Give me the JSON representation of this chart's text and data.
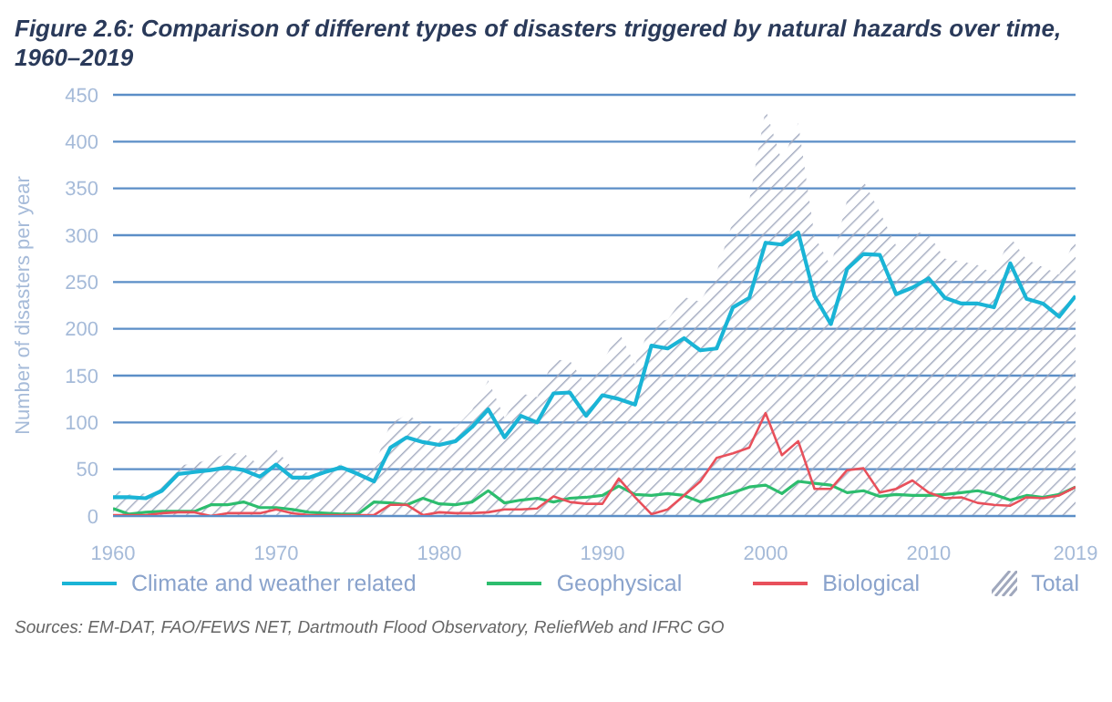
{
  "chart_data": {
    "type": "line",
    "title": "Figure 2.6: Comparison of different types of disasters triggered by natural hazards over time, 1960–2019",
    "ylabel": "Number of disasters per year",
    "x": [
      1960,
      1961,
      1962,
      1963,
      1964,
      1965,
      1966,
      1967,
      1968,
      1969,
      1970,
      1971,
      1972,
      1973,
      1974,
      1975,
      1976,
      1977,
      1978,
      1979,
      1980,
      1981,
      1982,
      1983,
      1984,
      1985,
      1986,
      1987,
      1988,
      1989,
      1990,
      1991,
      1992,
      1993,
      1994,
      1995,
      1996,
      1997,
      1998,
      1999,
      2000,
      2001,
      2002,
      2003,
      2004,
      2005,
      2006,
      2007,
      2008,
      2009,
      2010,
      2011,
      2012,
      2013,
      2014,
      2015,
      2016,
      2017,
      2018,
      2019
    ],
    "series": [
      {
        "name": "Total",
        "type": "area",
        "color": "#a0a8bd",
        "values": [
          29,
          23,
          24,
          35,
          54,
          56,
          61,
          67,
          67,
          54,
          71,
          51,
          46,
          51,
          55,
          48,
          53,
          99,
          108,
          99,
          93,
          95,
          113,
          145,
          105,
          131,
          127,
          167,
          166,
          140,
          164,
          197,
          162,
          206,
          210,
          234,
          229,
          261,
          315,
          337,
          435,
          379,
          420,
          299,
          267,
          338,
          358,
          325,
          289,
          304,
          301,
          275,
          272,
          268,
          258,
          298,
          274,
          266,
          258,
          297
        ]
      },
      {
        "name": "Climate and weather related",
        "color": "#1ab4d6",
        "values": [
          20,
          20,
          19,
          27,
          45,
          47,
          49,
          52,
          49,
          42,
          55,
          41,
          41,
          47,
          52,
          45,
          37,
          73,
          84,
          79,
          76,
          80,
          95,
          114,
          84,
          107,
          100,
          131,
          132,
          107,
          129,
          125,
          119,
          182,
          179,
          190,
          177,
          179,
          223,
          233,
          292,
          290,
          303,
          235,
          205,
          264,
          280,
          279,
          237,
          244,
          254,
          233,
          227,
          227,
          223,
          270,
          232,
          227,
          213,
          235
        ]
      },
      {
        "name": "Geophysical",
        "color": "#2dbd6e",
        "values": [
          8,
          2,
          4,
          5,
          5,
          5,
          12,
          12,
          15,
          9,
          9,
          7,
          4,
          3,
          2,
          2,
          15,
          14,
          12,
          19,
          13,
          12,
          15,
          27,
          14,
          17,
          19,
          15,
          19,
          20,
          22,
          32,
          23,
          22,
          24,
          22,
          15,
          20,
          25,
          31,
          33,
          24,
          37,
          35,
          33,
          25,
          27,
          21,
          23,
          22,
          22,
          23,
          25,
          27,
          23,
          17,
          22,
          20,
          23,
          31
        ]
      },
      {
        "name": "Biological",
        "color": "#e8505b",
        "values": [
          1,
          1,
          1,
          3,
          4,
          4,
          0,
          3,
          3,
          3,
          7,
          3,
          1,
          1,
          1,
          1,
          1,
          12,
          12,
          1,
          4,
          3,
          3,
          4,
          7,
          7,
          8,
          21,
          15,
          13,
          13,
          40,
          20,
          2,
          7,
          22,
          37,
          62,
          67,
          73,
          110,
          65,
          80,
          29,
          29,
          49,
          51,
          25,
          29,
          38,
          25,
          19,
          20,
          14,
          12,
          11,
          20,
          19,
          22,
          31
        ]
      }
    ],
    "xlim": [
      1960,
      2019
    ],
    "xticks": [
      1960,
      1970,
      1980,
      1990,
      2000,
      2010,
      2019
    ],
    "ylim": [
      0,
      450
    ],
    "yticks": [
      0,
      50,
      100,
      150,
      200,
      250,
      300,
      350,
      400,
      450
    ],
    "grid": "y",
    "legend": "bottom",
    "marker": "none",
    "line_style": "solid",
    "annotations": [
      "Sources: EM-DAT, FAO/FEWS NET, Dartmouth Flood Observatory, ReliefWeb and IFRC GO"
    ]
  }
}
